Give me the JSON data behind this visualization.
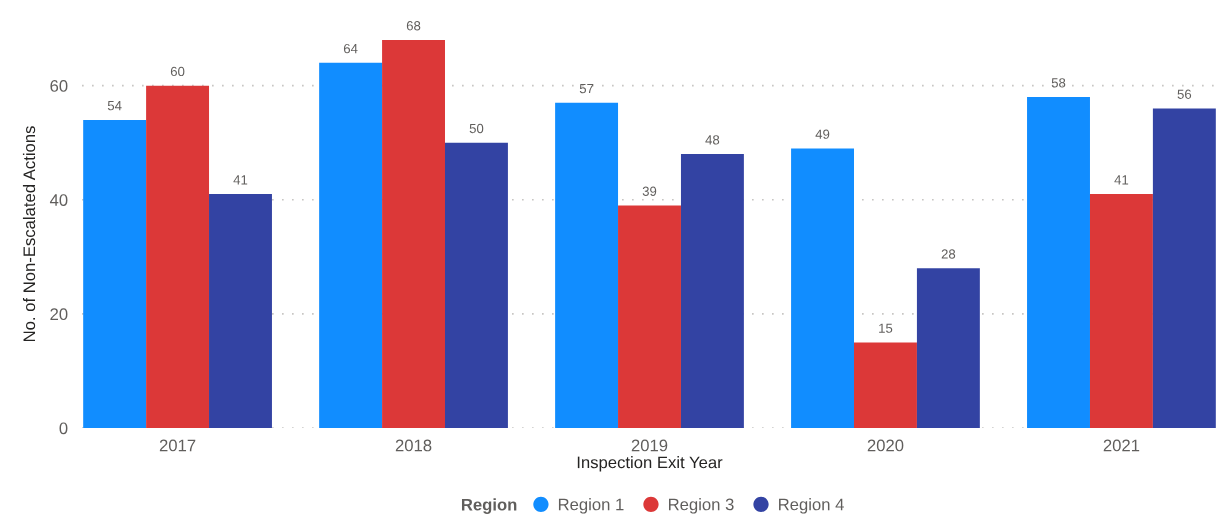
{
  "chart_data": {
    "type": "bar",
    "xlabel": "Inspection Exit Year",
    "ylabel": "No. of Non-Escalated Actions",
    "legend_title": "Region",
    "categories": [
      "2017",
      "2018",
      "2019",
      "2020",
      "2021"
    ],
    "series": [
      {
        "name": "Region 1",
        "color": "#118dff",
        "values": [
          54,
          64,
          57,
          49,
          58
        ]
      },
      {
        "name": "Region 3",
        "color": "#dc3838",
        "values": [
          60,
          68,
          39,
          15,
          41
        ]
      },
      {
        "name": "Region 4",
        "color": "#3343a3",
        "values": [
          41,
          50,
          48,
          28,
          56
        ]
      }
    ],
    "ylim": [
      0,
      68
    ],
    "yticks": [
      0,
      20,
      40,
      60
    ],
    "grid": "y",
    "legend": "bottom",
    "data_labels": true
  }
}
